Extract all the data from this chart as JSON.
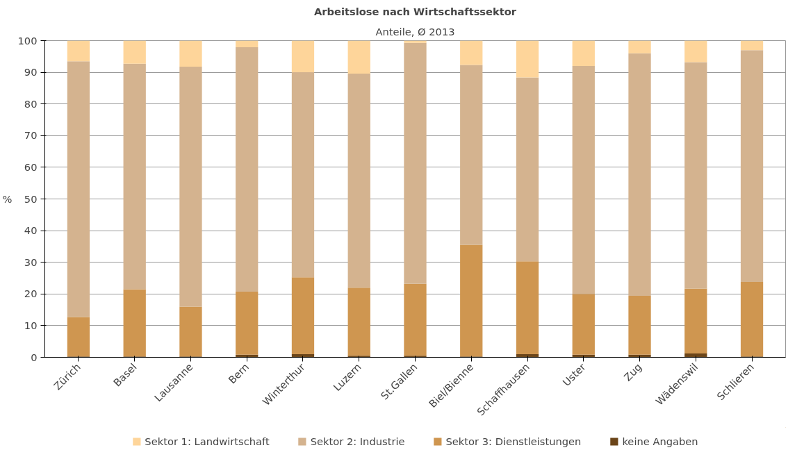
{
  "chart_data": {
    "type": "bar",
    "title": "Arbeitslose nach Wirtschaftssektor",
    "subtitle": "Anteile, Ø 2013",
    "ylabel": "%",
    "categories": [
      "Zürich",
      "Basel",
      "Lausanne",
      "Bern",
      "Winterthur",
      "Luzern",
      "St.Gallen",
      "Biel/Bienne",
      "Schaffhausen",
      "Uster",
      "Zug",
      "Wädenswil",
      "Schlieren"
    ],
    "stacked": true,
    "ylim": [
      0,
      100
    ],
    "yticks": [
      0,
      10,
      20,
      30,
      40,
      50,
      60,
      70,
      80,
      90,
      100
    ],
    "grid": "y",
    "legend": "bottom",
    "series": [
      {
        "name": "keine Angaben",
        "color": "#6b4519",
        "values": [
          0.3,
          0.3,
          0.3,
          0.8,
          1.0,
          0.5,
          0.5,
          0.3,
          1.0,
          0.8,
          0.8,
          1.2,
          0.3
        ]
      },
      {
        "name": "Sektor 3: Dienstleistungen",
        "color": "#cf9650",
        "values": [
          12.4,
          21.2,
          15.7,
          19.9,
          24.3,
          21.5,
          22.7,
          35.2,
          29.3,
          19.2,
          18.6,
          20.5,
          23.5
        ]
      },
      {
        "name": "Sektor 2: Industrie",
        "color": "#d4b38f",
        "values": [
          80.8,
          71.2,
          75.8,
          77.2,
          64.7,
          67.6,
          76.1,
          56.8,
          58.1,
          72.0,
          76.6,
          71.5,
          73.2
        ]
      },
      {
        "name": "Sektor 1: Landwirtschaft",
        "color": "#fed59a",
        "values": [
          6.5,
          7.3,
          8.2,
          2.1,
          10.0,
          10.4,
          0.7,
          7.7,
          11.6,
          8.0,
          4.0,
          6.8,
          3.0
        ]
      }
    ]
  }
}
